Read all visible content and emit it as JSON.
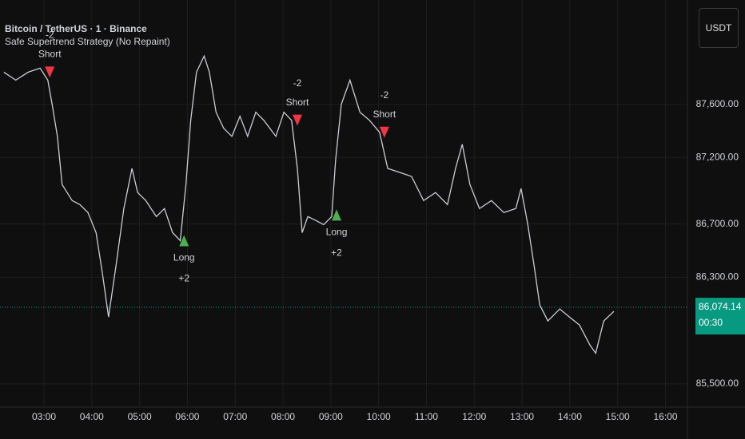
{
  "header": {
    "symbol": "Bitcoin / TetherUS · 1 · Binance",
    "indicator": "Safe Supertrend Strategy (No Repaint)",
    "currency_button": "USDT"
  },
  "chart_data": {
    "type": "line",
    "x": [
      2.16,
      2.41,
      2.67,
      2.92,
      3.08,
      3.17,
      3.28,
      3.38,
      3.59,
      3.75,
      3.92,
      4.09,
      4.22,
      4.35,
      4.51,
      4.67,
      4.84,
      4.96,
      5.13,
      5.35,
      5.52,
      5.69,
      5.85,
      5.97,
      6.07,
      6.19,
      6.35,
      6.46,
      6.6,
      6.76,
      6.93,
      7.1,
      7.26,
      7.43,
      7.6,
      7.85,
      8.02,
      8.18,
      8.3,
      8.4,
      8.52,
      8.69,
      8.85,
      9.02,
      9.1,
      9.22,
      9.4,
      9.61,
      9.81,
      10.02,
      10.19,
      10.44,
      10.69,
      10.94,
      11.19,
      11.44,
      11.61,
      11.75,
      11.91,
      12.11,
      12.36,
      12.62,
      12.87,
      12.98,
      13.12,
      13.25,
      13.37,
      13.54,
      13.79,
      13.99,
      14.2,
      14.42,
      14.54,
      14.71,
      14.92
    ],
    "series": [
      {
        "color": "#c9ced6",
        "values": [
          87841,
          87781,
          87841,
          87871,
          87781,
          87600,
          87359,
          86997,
          86876,
          86846,
          86786,
          86635,
          86334,
          86002,
          86394,
          86816,
          87118,
          86937,
          86876,
          86756,
          86816,
          86635,
          86575,
          86997,
          87479,
          87841,
          87962,
          87841,
          87540,
          87419,
          87359,
          87510,
          87359,
          87540,
          87479,
          87359,
          87540,
          87479,
          87118,
          86635,
          86756,
          86726,
          86696,
          86756,
          87178,
          87600,
          87781,
          87540,
          87479,
          87389,
          87118,
          87088,
          87057,
          86876,
          86937,
          86846,
          87118,
          87299,
          86997,
          86816,
          86876,
          86786,
          86816,
          86967,
          86696,
          86394,
          86093,
          85972,
          86062,
          86002,
          85942,
          85791,
          85730,
          85972,
          86044
        ]
      }
    ],
    "xlim": [
      2.08,
      16.46
    ],
    "ylim": [
      85325,
      88383
    ],
    "xticks": [
      {
        "value": 3,
        "label": "03:00"
      },
      {
        "value": 4,
        "label": "04:00"
      },
      {
        "value": 5,
        "label": "05:00"
      },
      {
        "value": 6,
        "label": "06:00"
      },
      {
        "value": 7,
        "label": "07:00"
      },
      {
        "value": 8,
        "label": "08:00"
      },
      {
        "value": 9,
        "label": "09:00"
      },
      {
        "value": 10,
        "label": "10:00"
      },
      {
        "value": 11,
        "label": "11:00"
      },
      {
        "value": 12,
        "label": "12:00"
      },
      {
        "value": 13,
        "label": "13:00"
      },
      {
        "value": 14,
        "label": "14:00"
      },
      {
        "value": 15,
        "label": "15:00"
      },
      {
        "value": 16,
        "label": "16:00"
      }
    ],
    "yticks": [
      {
        "value": 85500,
        "label": "85,500.00"
      },
      {
        "value": 86300,
        "label": "86,300.00"
      },
      {
        "value": 86700,
        "label": "86,700.00"
      },
      {
        "value": 87200,
        "label": "87,200.00"
      },
      {
        "value": 87600,
        "label": "87,600.00"
      }
    ],
    "grid": true,
    "last_price": {
      "value": 86074.14,
      "label": "86,074.14",
      "countdown": "00:30",
      "color": "#089981"
    },
    "signals": [
      {
        "side": "Short",
        "qty": "-2",
        "x": 3.12,
        "price": 87841
      },
      {
        "side": "Long",
        "qty": "+2",
        "x": 5.93,
        "price": 86575
      },
      {
        "side": "Short",
        "qty": "-2",
        "x": 8.3,
        "price": 87480
      },
      {
        "side": "Long",
        "qty": "+2",
        "x": 9.12,
        "price": 86768
      },
      {
        "side": "Short",
        "qty": "-2",
        "x": 10.12,
        "price": 87389
      }
    ]
  }
}
